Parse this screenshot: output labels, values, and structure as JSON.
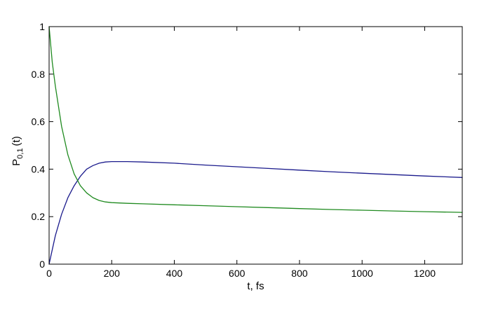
{
  "chart_data": {
    "type": "line",
    "xlabel": "t, fs",
    "ylabel": "P",
    "ylabel_subscript": "0,1",
    "ylabel_suffix": "(t)",
    "xlim": [
      0,
      1320
    ],
    "ylim": [
      0,
      1
    ],
    "xticks": [
      0,
      200,
      400,
      600,
      800,
      1000,
      1200
    ],
    "yticks": [
      0,
      0.2,
      0.4,
      0.6,
      0.8,
      1
    ],
    "ytick_labels": [
      "0",
      "0.2",
      "0.4",
      "0.6",
      "0.8",
      "1"
    ],
    "grid": false,
    "series": [
      {
        "color": "#1a1a8c",
        "x": [
          0,
          20,
          40,
          60,
          80,
          100,
          120,
          140,
          160,
          180,
          200,
          250,
          300,
          400,
          500,
          600,
          700,
          800,
          900,
          1000,
          1100,
          1200,
          1320
        ],
        "y": [
          0.0,
          0.12,
          0.21,
          0.28,
          0.33,
          0.37,
          0.4,
          0.415,
          0.425,
          0.43,
          0.432,
          0.432,
          0.43,
          0.425,
          0.417,
          0.41,
          0.403,
          0.396,
          0.389,
          0.383,
          0.377,
          0.371,
          0.365
        ]
      },
      {
        "color": "#1f8a1f",
        "x": [
          0,
          10,
          20,
          40,
          60,
          80,
          100,
          120,
          140,
          160,
          180,
          200,
          250,
          300,
          400,
          500,
          600,
          700,
          800,
          900,
          1000,
          1100,
          1200,
          1320
        ],
        "y": [
          1.0,
          0.85,
          0.75,
          0.58,
          0.46,
          0.38,
          0.33,
          0.3,
          0.28,
          0.268,
          0.262,
          0.259,
          0.256,
          0.254,
          0.25,
          0.246,
          0.242,
          0.238,
          0.234,
          0.23,
          0.227,
          0.224,
          0.221,
          0.218
        ]
      }
    ]
  }
}
